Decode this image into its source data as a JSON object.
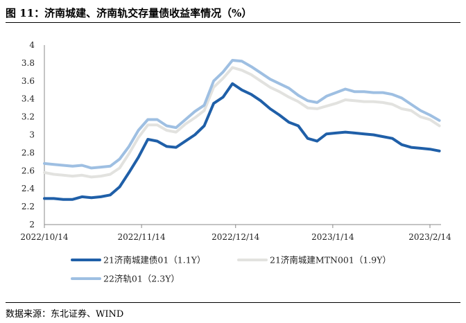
{
  "header": {
    "title": "图 11：济南城建、济南轨交存量债收益率情况（%）"
  },
  "footer": {
    "source": "数据来源：东北证券、WIND"
  },
  "chart_data": {
    "type": "line",
    "title": "图 11：济南城建、济南轨交存量债收益率情况（%）",
    "xlabel": "",
    "ylabel": "",
    "ylim": [
      2,
      4
    ],
    "yticks": [
      "2",
      "2.2",
      "2.4",
      "2.6",
      "2.8",
      "3",
      "3.2",
      "3.4",
      "3.6",
      "3.8",
      "4"
    ],
    "xticks": [
      "2022/10/14",
      "2022/11/14",
      "2022/12/14",
      "2023/1/14",
      "2023/2/14"
    ],
    "grid": false,
    "legend": "bottom",
    "x": [
      "2022/10/14",
      "2022/10/17",
      "2022/10/20",
      "2022/10/23",
      "2022/10/26",
      "2022/10/29",
      "2022/11/1",
      "2022/11/4",
      "2022/11/7",
      "2022/11/10",
      "2022/11/13",
      "2022/11/16",
      "2022/11/19",
      "2022/11/22",
      "2022/11/25",
      "2022/11/28",
      "2022/12/1",
      "2022/12/4",
      "2022/12/7",
      "2022/12/10",
      "2022/12/13",
      "2022/12/16",
      "2022/12/19",
      "2022/12/22",
      "2022/12/25",
      "2022/12/28",
      "2022/12/31",
      "2023/1/3",
      "2023/1/6",
      "2023/1/9",
      "2023/1/12",
      "2023/1/15",
      "2023/1/18",
      "2023/1/21",
      "2023/1/24",
      "2023/1/27",
      "2023/1/30",
      "2023/2/2",
      "2023/2/5",
      "2023/2/8",
      "2023/2/11",
      "2023/2/14",
      "2023/2/17"
    ],
    "series": [
      {
        "name": "21济南城建债01（1.1Y）",
        "color": "#1f5fa8",
        "values": [
          2.29,
          2.29,
          2.28,
          2.28,
          2.31,
          2.3,
          2.31,
          2.33,
          2.42,
          2.58,
          2.75,
          2.95,
          2.93,
          2.87,
          2.86,
          2.93,
          3.0,
          3.1,
          3.35,
          3.42,
          3.57,
          3.5,
          3.45,
          3.38,
          3.29,
          3.22,
          3.14,
          3.1,
          2.96,
          2.93,
          3.01,
          3.02,
          3.03,
          3.02,
          3.01,
          3.0,
          2.98,
          2.96,
          2.89,
          2.86,
          2.85,
          2.84,
          2.82
        ]
      },
      {
        "name": "21济南城建MTN001（1.9Y）",
        "color": "#e2e2df",
        "values": [
          2.58,
          2.56,
          2.55,
          2.54,
          2.55,
          2.53,
          2.54,
          2.56,
          2.63,
          2.79,
          2.97,
          3.11,
          3.11,
          3.05,
          3.03,
          3.12,
          3.19,
          3.27,
          3.53,
          3.63,
          3.75,
          3.72,
          3.67,
          3.6,
          3.53,
          3.48,
          3.42,
          3.37,
          3.3,
          3.29,
          3.32,
          3.35,
          3.39,
          3.38,
          3.37,
          3.37,
          3.36,
          3.34,
          3.29,
          3.27,
          3.2,
          3.17,
          3.1
        ]
      },
      {
        "name": "22济轨01（2.3Y）",
        "color": "#9ebfe2",
        "values": [
          2.68,
          2.67,
          2.66,
          2.65,
          2.66,
          2.63,
          2.64,
          2.65,
          2.73,
          2.87,
          3.05,
          3.17,
          3.17,
          3.1,
          3.08,
          3.17,
          3.26,
          3.33,
          3.6,
          3.7,
          3.83,
          3.82,
          3.76,
          3.69,
          3.62,
          3.57,
          3.52,
          3.44,
          3.38,
          3.36,
          3.43,
          3.47,
          3.51,
          3.48,
          3.48,
          3.47,
          3.47,
          3.45,
          3.41,
          3.34,
          3.27,
          3.22,
          3.16
        ]
      }
    ]
  }
}
